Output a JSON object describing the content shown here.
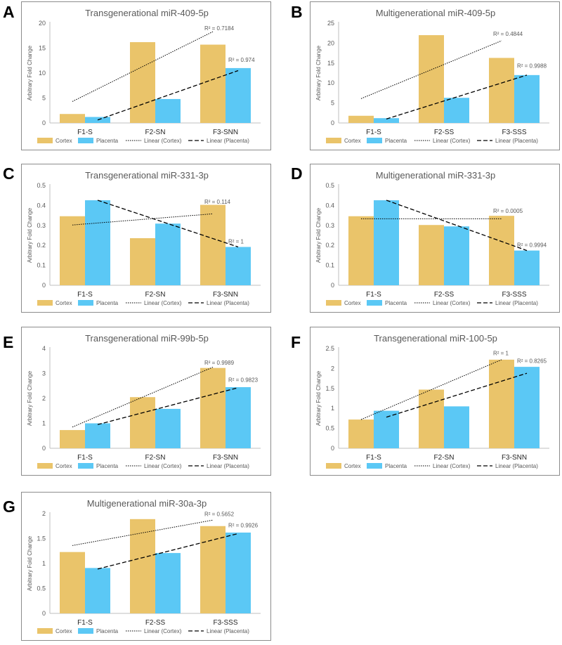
{
  "legend": {
    "cortex": "Cortex",
    "placenta": "Placenta",
    "linear_cortex": "Linear (Cortex)",
    "linear_placenta": "Linear (Placenta)"
  },
  "colors": {
    "cortex": "#EAC46A",
    "placenta": "#5BC8F5",
    "axis": "#BFBFBF",
    "text": "#595959",
    "trend": "#000000"
  },
  "chart_data": [
    {
      "letter": "A",
      "type": "bar",
      "title": "Transgenerational miR-409-5p",
      "ylabel": "Arbitrary Fold Change",
      "categories": [
        "F1-S",
        "F2-SN",
        "F3-SNN"
      ],
      "ylim": [
        0,
        20
      ],
      "yticks": [
        "0",
        "5",
        "10",
        "15",
        "20"
      ],
      "ytick_values": [
        0,
        5,
        10,
        15,
        20
      ],
      "series": [
        {
          "name": "Cortex",
          "values": [
            1.8,
            16.2,
            15.7
          ]
        },
        {
          "name": "Placenta",
          "values": [
            1.2,
            4.8,
            11.0
          ]
        }
      ],
      "trendlines": [
        {
          "series": "Cortex",
          "start": 4.3,
          "end": 18.3,
          "label": "R² = 0.7184",
          "label_value": 18.3
        },
        {
          "series": "Placenta",
          "start": 0.6,
          "end": 10.5,
          "label": "R² = 0.974",
          "label_value": 12.0
        }
      ]
    },
    {
      "letter": "B",
      "type": "bar",
      "title": "Multigenerational miR-409-5p",
      "ylabel": "Arbitrary Fold Change",
      "categories": [
        "F1-S",
        "F2-SS",
        "F3-SSS"
      ],
      "ylim": [
        0,
        25
      ],
      "yticks": [
        "0",
        "5",
        "10",
        "15",
        "20",
        "25"
      ],
      "ytick_values": [
        0,
        5,
        10,
        15,
        20,
        25
      ],
      "series": [
        {
          "name": "Cortex",
          "values": [
            1.8,
            22.0,
            16.3
          ]
        },
        {
          "name": "Placenta",
          "values": [
            1.2,
            6.3,
            12.0
          ]
        }
      ],
      "trendlines": [
        {
          "series": "Cortex",
          "start": 6.1,
          "end": 20.6,
          "label": "R² = 0.4844",
          "label_value": 21.5
        },
        {
          "series": "Placenta",
          "start": 1.0,
          "end": 12.0,
          "label": "R² = 0.9988",
          "label_value": 13.5
        }
      ]
    },
    {
      "letter": "C",
      "type": "bar",
      "title": "Transgenerational miR-331-3p",
      "ylabel": "Arbitrary Fold Change",
      "categories": [
        "F1-S",
        "F2-SN",
        "F3-SNN"
      ],
      "ylim": [
        0,
        0.5
      ],
      "yticks": [
        "0",
        "0.1",
        "0.2",
        "0.3",
        "0.4",
        "0.5"
      ],
      "ytick_values": [
        0,
        0.1,
        0.2,
        0.3,
        0.4,
        0.5
      ],
      "series": [
        {
          "name": "Cortex",
          "values": [
            0.346,
            0.236,
            0.403
          ]
        },
        {
          "name": "Placenta",
          "values": [
            0.426,
            0.309,
            0.192
          ]
        }
      ],
      "trendlines": [
        {
          "series": "Cortex",
          "start": 0.302,
          "end": 0.358,
          "label": "R² = 0.114",
          "label_value": 0.402
        },
        {
          "series": "Placenta",
          "start": 0.426,
          "end": 0.192,
          "label": "R² = 1",
          "label_value": 0.202
        }
      ]
    },
    {
      "letter": "D",
      "type": "bar",
      "title": "Multigenerational miR-331-3p",
      "ylabel": "Arbitrary Fold Change",
      "categories": [
        "F1-S",
        "F2-SS",
        "F3-SSS"
      ],
      "ylim": [
        0,
        0.5
      ],
      "yticks": [
        "0",
        "0.1",
        "0.2",
        "0.3",
        "0.4",
        "0.5"
      ],
      "ytick_values": [
        0,
        0.1,
        0.2,
        0.3,
        0.4,
        0.5
      ],
      "series": [
        {
          "name": "Cortex",
          "values": [
            0.346,
            0.302,
            0.348
          ]
        },
        {
          "name": "Placenta",
          "values": [
            0.426,
            0.295,
            0.174
          ]
        }
      ],
      "trendlines": [
        {
          "series": "Cortex",
          "start": 0.333,
          "end": 0.333,
          "label": "R² = 0.0005",
          "label_value": 0.355
        },
        {
          "series": "Placenta",
          "start": 0.426,
          "end": 0.174,
          "label": "R² = 0.9994",
          "label_value": 0.184
        }
      ]
    },
    {
      "letter": "E",
      "type": "bar",
      "title": "Transgenerational miR-99b-5p",
      "ylabel": "Arbitrary Fold Change",
      "categories": [
        "F1-S",
        "F2-SN",
        "F3-SNN"
      ],
      "ylim": [
        0,
        4
      ],
      "yticks": [
        "0",
        "1",
        "2",
        "3",
        "4"
      ],
      "ytick_values": [
        0,
        1,
        2,
        3,
        4
      ],
      "series": [
        {
          "name": "Cortex",
          "values": [
            0.73,
            2.05,
            3.22
          ]
        },
        {
          "name": "Placenta",
          "values": [
            1.0,
            1.58,
            2.45
          ]
        }
      ],
      "trendlines": [
        {
          "series": "Cortex",
          "start": 0.85,
          "end": 3.25,
          "label": "R² = 0.9989",
          "label_value": 3.3
        },
        {
          "series": "Placenta",
          "start": 0.95,
          "end": 2.43,
          "label": "R² = 0.9823",
          "label_value": 2.6
        }
      ]
    },
    {
      "letter": "F",
      "type": "bar",
      "title": "Transgenerational miR-100-5p",
      "ylabel": "Arbitrary Fold Change",
      "categories": [
        "F1-S",
        "F2-SN",
        "F3-SNN"
      ],
      "ylim": [
        0,
        2.5
      ],
      "yticks": [
        "0",
        "0.5",
        "1",
        "1.5",
        "2",
        "2.5"
      ],
      "ytick_values": [
        0,
        0.5,
        1,
        1.5,
        2,
        2.5
      ],
      "series": [
        {
          "name": "Cortex",
          "values": [
            0.72,
            1.47,
            2.22
          ]
        },
        {
          "name": "Placenta",
          "values": [
            0.94,
            1.05,
            2.04
          ]
        }
      ],
      "trendlines": [
        {
          "series": "Cortex",
          "start": 0.72,
          "end": 2.22,
          "label": "R² = 1",
          "label_value": 2.3
        },
        {
          "series": "Placenta",
          "start": 0.78,
          "end": 1.88,
          "label": "R² = 0.8265",
          "label_value": 2.1
        }
      ]
    },
    {
      "letter": "G",
      "type": "bar",
      "title": "Multigenerational miR-30a-3p",
      "ylabel": "Arbitrary Fold Change",
      "categories": [
        "F1-S",
        "F2-SS",
        "F3-SSS"
      ],
      "ylim": [
        0,
        2
      ],
      "yticks": [
        "0",
        "0.5",
        "1",
        "1.5",
        "2"
      ],
      "ytick_values": [
        0,
        0.5,
        1,
        1.5,
        2
      ],
      "series": [
        {
          "name": "Cortex",
          "values": [
            1.23,
            1.89,
            1.75
          ]
        },
        {
          "name": "Placenta",
          "values": [
            0.91,
            1.21,
            1.62
          ]
        }
      ],
      "trendlines": [
        {
          "series": "Cortex",
          "start": 1.36,
          "end": 1.87,
          "label": "R² = 0.5652",
          "label_value": 1.92
        },
        {
          "series": "Placenta",
          "start": 0.89,
          "end": 1.6,
          "label": "R² = 0.9926",
          "label_value": 1.7
        }
      ]
    }
  ]
}
